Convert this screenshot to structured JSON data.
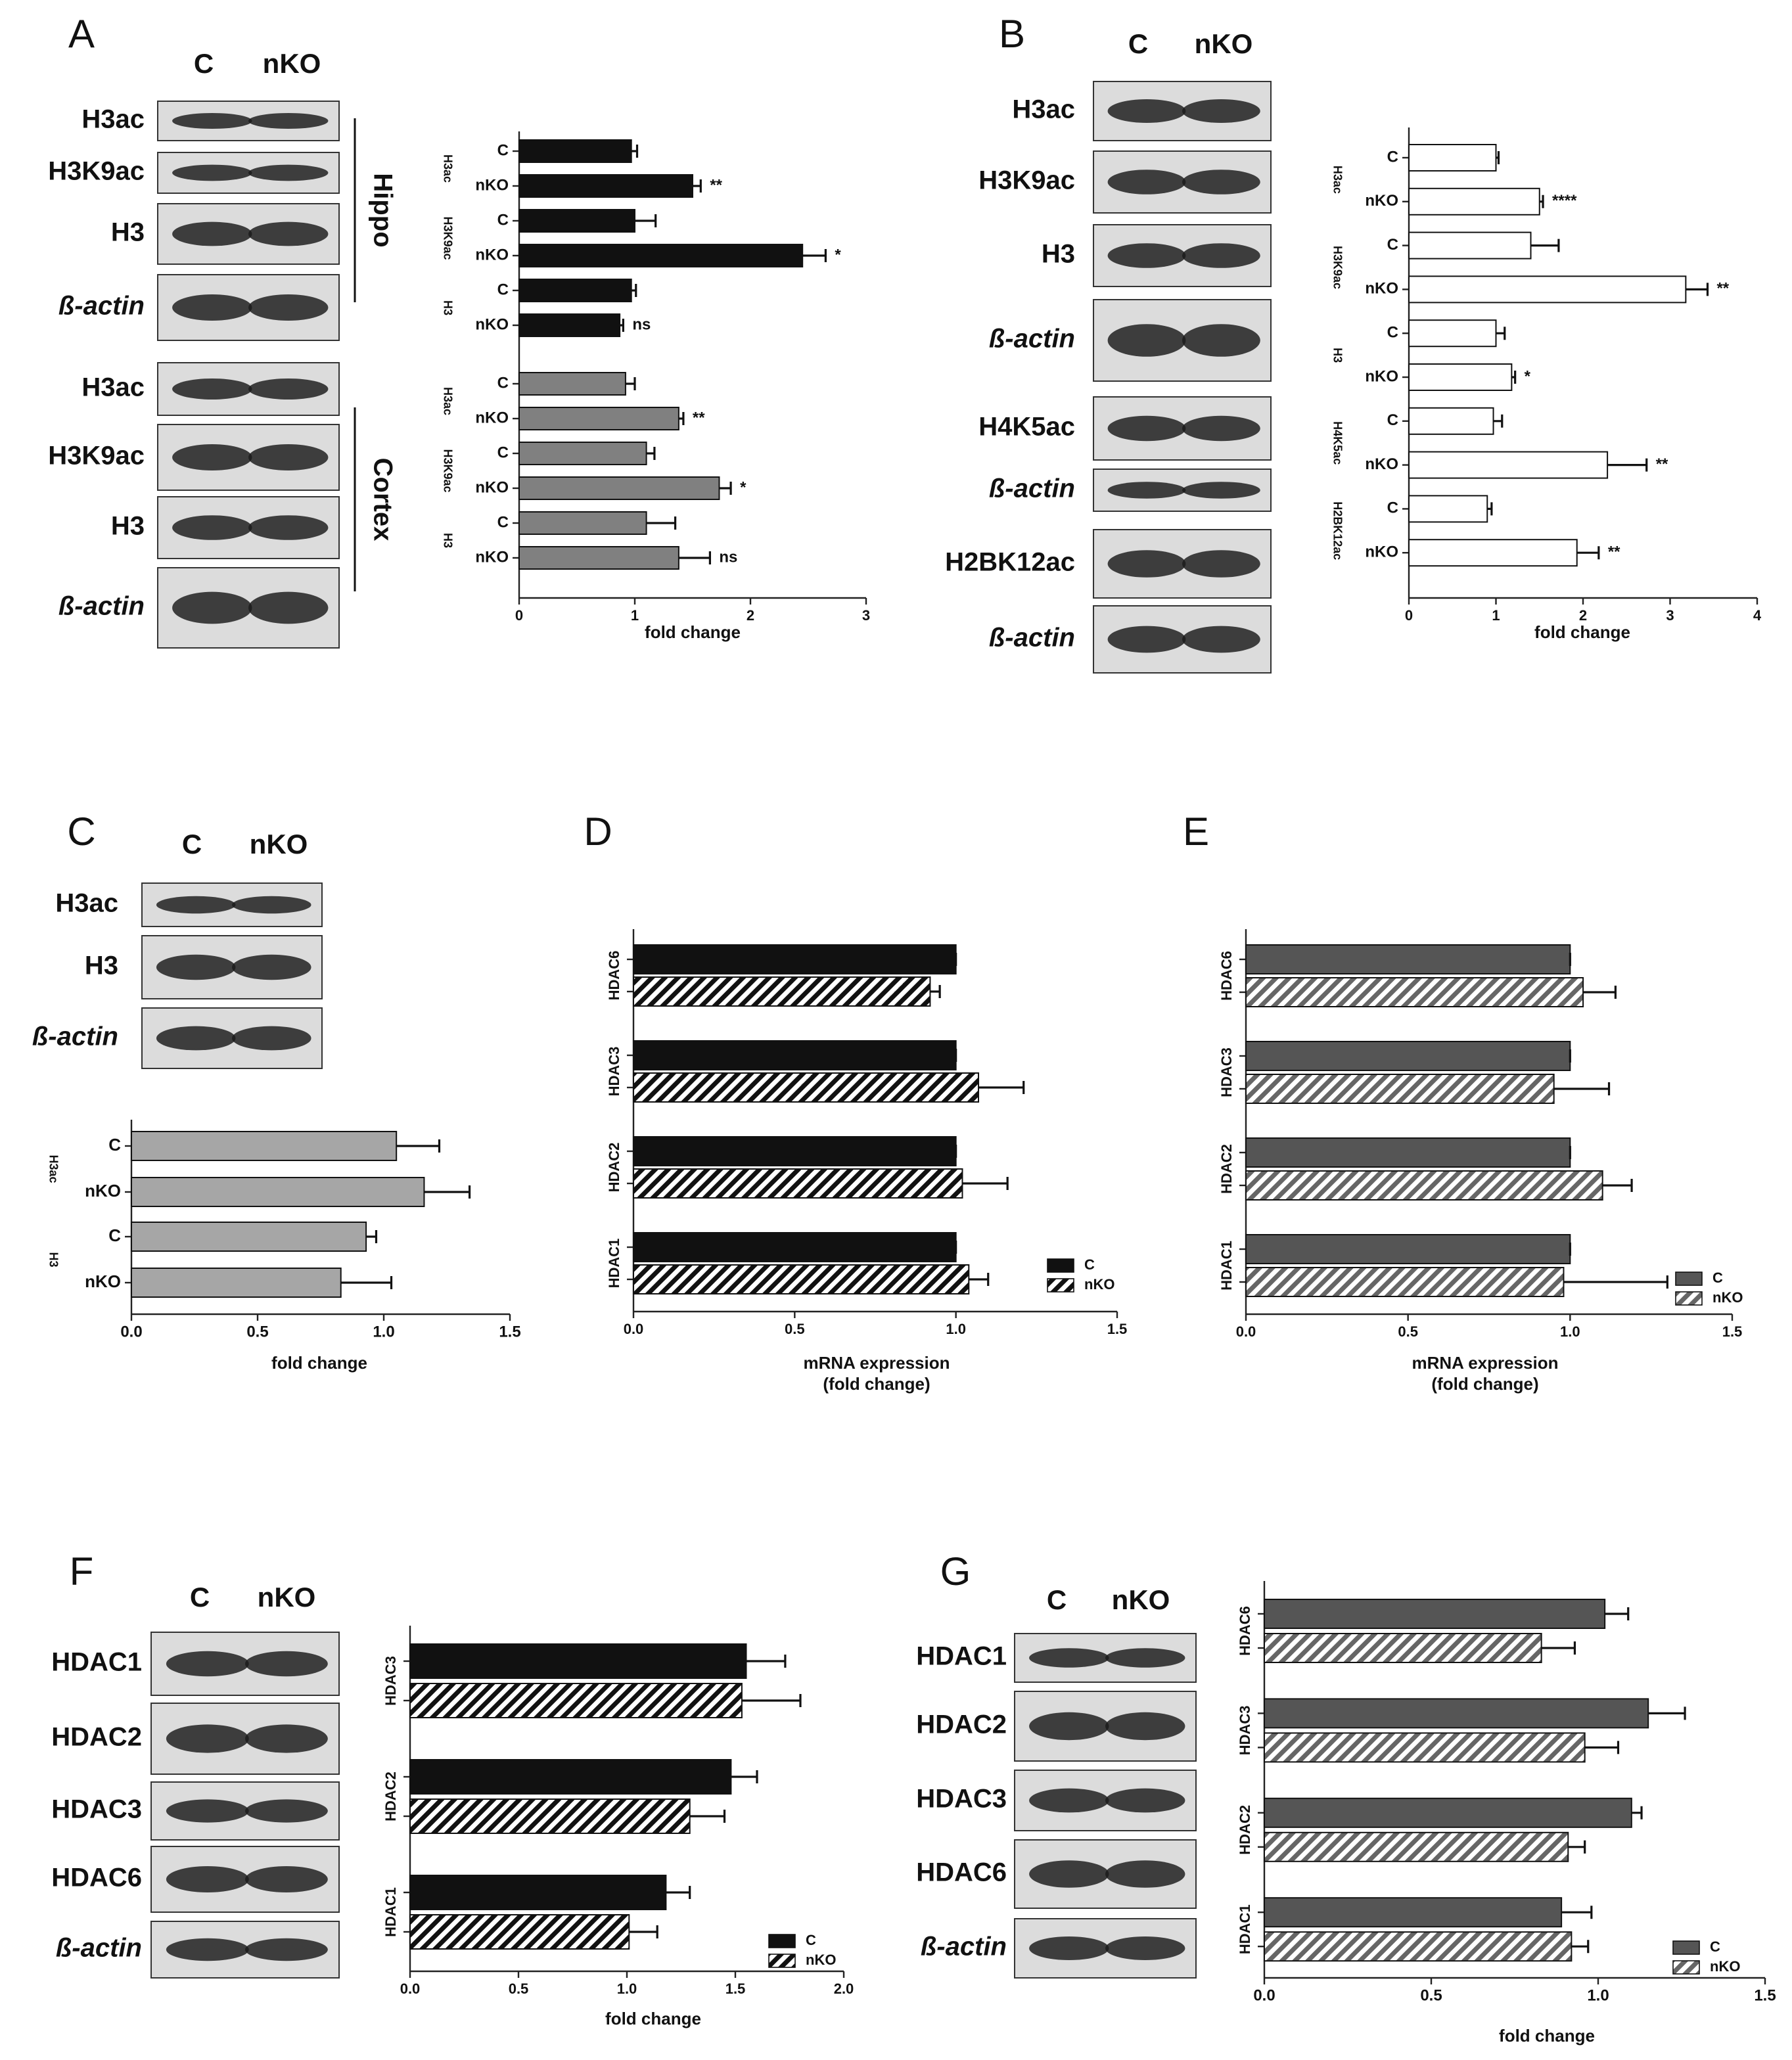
{
  "panels": [
    {
      "letter": "A",
      "blot": {
        "columns": [
          "C",
          "nKO"
        ],
        "rows": [
          "H3ac",
          "H3K9ac",
          "H3",
          "ß-actin",
          "H3ac",
          "H3K9ac",
          "H3",
          "ß-actin"
        ],
        "regions": [
          "Hippo",
          "Cortex"
        ]
      }
    },
    {
      "letter": "B",
      "blot": {
        "columns": [
          "C",
          "nKO"
        ],
        "rows": [
          "H3ac",
          "H3K9ac",
          "H3",
          "ß-actin",
          "H4K5ac",
          "ß-actin",
          "H2BK12ac",
          "ß-actin"
        ]
      }
    },
    {
      "letter": "C",
      "blot": {
        "columns": [
          "C",
          "nKO"
        ],
        "rows": [
          "H3ac",
          "H3",
          "ß-actin"
        ]
      }
    },
    {
      "letter": "D"
    },
    {
      "letter": "E"
    },
    {
      "letter": "F",
      "blot": {
        "columns": [
          "C",
          "nKO"
        ],
        "rows": [
          "HDAC1",
          "HDAC2",
          "HDAC3",
          "HDAC6",
          "ß-actin"
        ]
      }
    },
    {
      "letter": "G",
      "blot": {
        "columns": [
          "C",
          "nKO"
        ],
        "rows": [
          "HDAC1",
          "HDAC2",
          "HDAC3",
          "HDAC6",
          "ß-actin"
        ]
      }
    }
  ],
  "chart_data": [
    {
      "type": "bar",
      "categories": [
        "H3ac",
        "H3K9ac",
        "H3",
        "H3ac",
        "H3K9ac",
        "H3"
      ],
      "category_colors": [
        "#111111",
        "#111111",
        "#111111",
        "#808080",
        "#808080",
        "#808080"
      ],
      "series": [
        {
          "name": "C",
          "pattern": "solid",
          "values": [
            0.97,
            1.0,
            0.97,
            0.92,
            1.1,
            1.1
          ],
          "errors": [
            0.05,
            0.18,
            0.04,
            0.08,
            0.07,
            0.25
          ]
        },
        {
          "name": "nKO",
          "pattern": "solid",
          "values": [
            1.5,
            2.45,
            0.87,
            1.38,
            1.73,
            1.38
          ],
          "errors": [
            0.07,
            0.2,
            0.03,
            0.04,
            0.1,
            0.27
          ],
          "annotations": [
            "**",
            "*",
            "ns",
            "**",
            "*",
            "ns"
          ]
        }
      ],
      "bar_labels": true,
      "xlabel": "fold change",
      "xlim": [
        0,
        3
      ],
      "xticks": [
        0,
        1,
        2,
        3
      ]
    },
    {
      "type": "bar",
      "categories": [
        "H3ac",
        "H3K9ac",
        "H3",
        "H4K5ac",
        "H2BK12ac"
      ],
      "series": [
        {
          "name": "C",
          "color": "#ffffff",
          "pattern": "solid",
          "values": [
            1.0,
            1.4,
            1.0,
            0.97,
            0.9
          ],
          "errors": [
            0.03,
            0.32,
            0.1,
            0.1,
            0.05
          ]
        },
        {
          "name": "nKO",
          "color": "#ffffff",
          "pattern": "solid",
          "values": [
            1.5,
            3.18,
            1.18,
            2.28,
            1.93
          ],
          "errors": [
            0.04,
            0.25,
            0.04,
            0.45,
            0.25
          ],
          "annotations": [
            "****",
            "**",
            "*",
            "**",
            "**"
          ]
        }
      ],
      "bar_labels": true,
      "xlabel": "fold change",
      "xlim": [
        0,
        4
      ],
      "xticks": [
        0,
        1,
        2,
        3,
        4
      ]
    },
    {
      "type": "bar",
      "categories": [
        "H3ac",
        "H3"
      ],
      "series": [
        {
          "name": "C",
          "color": "#a6a6a6",
          "pattern": "solid",
          "values": [
            1.05,
            0.93
          ],
          "errors": [
            0.17,
            0.04
          ]
        },
        {
          "name": "nKO",
          "color": "#a6a6a6",
          "pattern": "solid",
          "values": [
            1.16,
            0.83
          ],
          "errors": [
            0.18,
            0.2
          ]
        }
      ],
      "bar_labels": true,
      "xlabel": "fold change",
      "xlim": [
        0,
        1.5
      ],
      "xticks": [
        {
          "value": 0,
          "label": "0.0"
        },
        {
          "value": 0.5,
          "label": "0.5"
        },
        {
          "value": 1,
          "label": "1.0"
        },
        {
          "value": 1.5,
          "label": "1.5"
        }
      ]
    },
    {
      "type": "bar",
      "categories": [
        "HDAC6",
        "HDAC3",
        "HDAC2",
        "HDAC1"
      ],
      "series": [
        {
          "name": "C",
          "color": "#111111",
          "pattern": "solid",
          "values": [
            1.0,
            1.0,
            1.0,
            1.0
          ],
          "errors": [
            0,
            0,
            0,
            0
          ]
        },
        {
          "name": "nKO",
          "color": "#111111",
          "pattern": "hatch",
          "values": [
            0.92,
            1.07,
            1.02,
            1.04
          ],
          "errors": [
            0.03,
            0.14,
            0.14,
            0.06
          ]
        }
      ],
      "legend": "lower right",
      "xlabel": [
        "mRNA expression",
        "(fold change)"
      ],
      "xlim": [
        0,
        1.5
      ],
      "xticks": [
        {
          "value": 0,
          "label": "0.0"
        },
        {
          "value": 0.5,
          "label": "0.5"
        },
        {
          "value": 1,
          "label": "1.0"
        },
        {
          "value": 1.5,
          "label": "1.5"
        }
      ]
    },
    {
      "type": "bar",
      "categories": [
        "HDAC6",
        "HDAC3",
        "HDAC2",
        "HDAC1"
      ],
      "series": [
        {
          "name": "C",
          "color": "#555555",
          "pattern": "solid",
          "values": [
            1.0,
            1.0,
            1.0,
            1.0
          ],
          "errors": [
            0,
            0,
            0,
            0
          ]
        },
        {
          "name": "nKO",
          "color": "#666666",
          "pattern": "hatch",
          "values": [
            1.04,
            0.95,
            1.1,
            0.98
          ],
          "errors": [
            0.1,
            0.17,
            0.09,
            0.32
          ]
        }
      ],
      "legend": "lower right",
      "xlabel": [
        "mRNA expression",
        "(fold change)"
      ],
      "xlim": [
        0,
        1.5
      ],
      "xticks": [
        {
          "value": 0,
          "label": "0.0"
        },
        {
          "value": 0.5,
          "label": "0.5"
        },
        {
          "value": 1,
          "label": "1.0"
        },
        {
          "value": 1.5,
          "label": "1.5"
        }
      ]
    },
    {
      "type": "bar",
      "categories": [
        "HDAC3",
        "HDAC2",
        "HDAC1"
      ],
      "series": [
        {
          "name": "C",
          "color": "#111111",
          "pattern": "solid",
          "values": [
            1.55,
            1.48,
            1.18
          ],
          "errors": [
            0.18,
            0.12,
            0.11
          ]
        },
        {
          "name": "nKO",
          "color": "#111111",
          "pattern": "hatch",
          "values": [
            1.53,
            1.29,
            1.01
          ],
          "errors": [
            0.27,
            0.16,
            0.13
          ]
        }
      ],
      "legend": "lower right",
      "xlabel": "fold change",
      "xlim": [
        0,
        2
      ],
      "xticks": [
        {
          "value": 0,
          "label": "0.0"
        },
        {
          "value": 0.5,
          "label": "0.5"
        },
        {
          "value": 1,
          "label": "1.0"
        },
        {
          "value": 1.5,
          "label": "1.5"
        },
        {
          "value": 2,
          "label": "2.0"
        }
      ]
    },
    {
      "type": "bar",
      "categories": [
        "HDAC6",
        "HDAC3",
        "HDAC2",
        "HDAC1"
      ],
      "series": [
        {
          "name": "C",
          "color": "#555555",
          "pattern": "solid",
          "values": [
            1.02,
            1.15,
            1.1,
            0.89
          ],
          "errors": [
            0.07,
            0.11,
            0.03,
            0.09
          ]
        },
        {
          "name": "nKO",
          "color": "#666666",
          "pattern": "hatch",
          "values": [
            0.83,
            0.96,
            0.91,
            0.92
          ],
          "errors": [
            0.1,
            0.1,
            0.05,
            0.05
          ]
        }
      ],
      "legend": "lower right",
      "xlabel": "fold change",
      "xlim": [
        0,
        1.5
      ],
      "xticks": [
        {
          "value": 0,
          "label": "0.0"
        },
        {
          "value": 0.5,
          "label": "0.5"
        },
        {
          "value": 1,
          "label": "1.0"
        },
        {
          "value": 1.5,
          "label": "1.5"
        }
      ]
    }
  ]
}
